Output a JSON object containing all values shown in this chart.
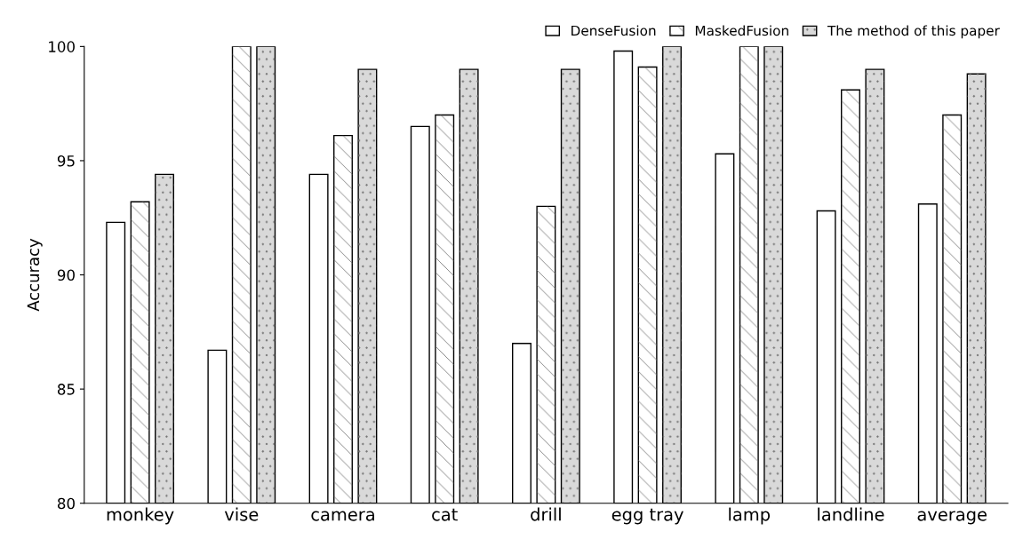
{
  "chart_data": {
    "type": "bar",
    "ylabel": "Accuracy",
    "categories": [
      "monkey",
      "vise",
      "camera",
      "cat",
      "drill",
      "egg tray",
      "lamp",
      "landline",
      "average"
    ],
    "series": [
      {
        "name": "DenseFusion",
        "color": "#ffffff",
        "values": [
          92.3,
          86.7,
          94.4,
          96.5,
          87.0,
          99.8,
          95.3,
          92.8,
          93.1
        ]
      },
      {
        "name": "MaskedFusion",
        "color": "#ffffff",
        "values": [
          93.2,
          100,
          96.1,
          97.0,
          93.0,
          99.1,
          100,
          98.1,
          97.0
        ]
      },
      {
        "name": "The method of this paper",
        "color": "#d9d9d9",
        "values": [
          94.4,
          100,
          99.0,
          99.0,
          99.0,
          100,
          100,
          99.0,
          98.8
        ]
      }
    ],
    "ylim": [
      80,
      100
    ],
    "yticks": [
      80,
      85,
      90,
      95,
      100
    ],
    "grid": false,
    "legend": "top right"
  }
}
